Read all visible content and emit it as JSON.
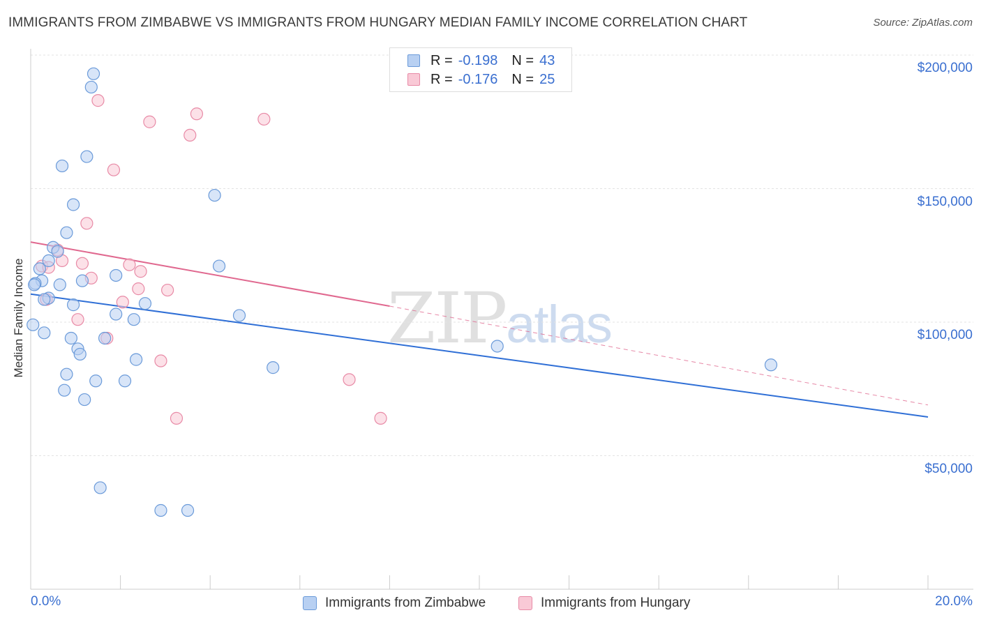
{
  "title": "IMMIGRANTS FROM ZIMBABWE VS IMMIGRANTS FROM HUNGARY MEDIAN FAMILY INCOME CORRELATION CHART",
  "source": "Source: ZipAtlas.com",
  "watermark": {
    "zip": "ZIP",
    "atlas": "atlas"
  },
  "legend": {
    "rows": [
      {
        "r_label": "R =",
        "r_value": "-0.198",
        "n_label": "N =",
        "n_value": "43",
        "fill": "#b8d0f2",
        "stroke": "#6a9ad9"
      },
      {
        "r_label": "R =",
        "r_value": "-0.176",
        "n_label": "N =",
        "n_value": "25",
        "fill": "#f9c9d6",
        "stroke": "#e88aa6"
      }
    ]
  },
  "bottom_legend": [
    {
      "label": "Immigrants from Zimbabwe",
      "fill": "#b8d0f2",
      "stroke": "#6a9ad9"
    },
    {
      "label": "Immigrants from Hungary",
      "fill": "#f9c9d6",
      "stroke": "#e88aa6"
    }
  ],
  "chart_data": {
    "type": "scatter",
    "title": "IMMIGRANTS FROM ZIMBABWE VS IMMIGRANTS FROM HUNGARY MEDIAN FAMILY INCOME CORRELATION CHART",
    "xlabel": "",
    "ylabel": "Median Family Income",
    "xlim": [
      0,
      20
    ],
    "ylim": [
      0,
      205000
    ],
    "x_tick_labels": [
      "0.0%",
      "20.0%"
    ],
    "y_ticks": [
      50000,
      100000,
      150000,
      200000
    ],
    "y_tick_labels": [
      "$50,000",
      "$100,000",
      "$150,000",
      "$200,000"
    ],
    "grid": true,
    "series": [
      {
        "name": "Immigrants from Zimbabwe",
        "color": "#6a9ad9",
        "fill": "#b8d0f2",
        "trend_color": "#2f6fd6",
        "trend": {
          "x0": 0,
          "y0": 110500,
          "x1": 20,
          "y1": 64500
        },
        "points": [
          [
            1.4,
            193000
          ],
          [
            1.35,
            188000
          ],
          [
            0.7,
            158500
          ],
          [
            1.25,
            162000
          ],
          [
            4.1,
            147500
          ],
          [
            0.95,
            144000
          ],
          [
            0.8,
            133500
          ],
          [
            0.5,
            128000
          ],
          [
            0.6,
            126500
          ],
          [
            0.4,
            123000
          ],
          [
            4.2,
            121000
          ],
          [
            0.2,
            120000
          ],
          [
            0.25,
            115500
          ],
          [
            0.1,
            114500
          ],
          [
            0.65,
            114000
          ],
          [
            1.15,
            115500
          ],
          [
            1.9,
            117500
          ],
          [
            0.4,
            109000
          ],
          [
            0.3,
            108500
          ],
          [
            0.95,
            106500
          ],
          [
            2.55,
            107000
          ],
          [
            1.9,
            103000
          ],
          [
            2.3,
            101000
          ],
          [
            4.65,
            102500
          ],
          [
            0.05,
            99000
          ],
          [
            0.3,
            96000
          ],
          [
            0.9,
            94000
          ],
          [
            1.65,
            94000
          ],
          [
            1.05,
            90000
          ],
          [
            1.1,
            88000
          ],
          [
            2.35,
            86000
          ],
          [
            5.4,
            83000
          ],
          [
            10.4,
            91000
          ],
          [
            16.5,
            84000
          ],
          [
            0.8,
            80500
          ],
          [
            1.45,
            78000
          ],
          [
            2.1,
            78000
          ],
          [
            0.75,
            74500
          ],
          [
            1.2,
            71000
          ],
          [
            1.55,
            38000
          ],
          [
            2.9,
            29500
          ],
          [
            3.5,
            29500
          ],
          [
            0.08,
            114000
          ]
        ]
      },
      {
        "name": "Immigrants from Hungary",
        "color": "#e88aa6",
        "fill": "#f9c9d6",
        "trend_color": "#e0688f",
        "trend": {
          "x0": 0,
          "y0": 130000,
          "x1": 8,
          "y1": 106000
        },
        "trend_dashed": {
          "x0": 8,
          "y0": 106000,
          "x1": 20,
          "y1": 69000
        },
        "points": [
          [
            1.5,
            183000
          ],
          [
            3.7,
            178000
          ],
          [
            5.2,
            176000
          ],
          [
            2.65,
            175000
          ],
          [
            3.55,
            170000
          ],
          [
            1.85,
            157000
          ],
          [
            1.25,
            137000
          ],
          [
            0.6,
            127000
          ],
          [
            0.7,
            123000
          ],
          [
            1.15,
            122000
          ],
          [
            2.2,
            121500
          ],
          [
            0.25,
            121000
          ],
          [
            0.4,
            120500
          ],
          [
            2.45,
            119000
          ],
          [
            1.35,
            116500
          ],
          [
            2.4,
            112500
          ],
          [
            3.05,
            112000
          ],
          [
            2.05,
            107500
          ],
          [
            0.35,
            108500
          ],
          [
            1.05,
            101000
          ],
          [
            1.7,
            94000
          ],
          [
            2.9,
            85500
          ],
          [
            7.1,
            78500
          ],
          [
            3.25,
            64000
          ],
          [
            7.8,
            64000
          ]
        ]
      }
    ]
  }
}
